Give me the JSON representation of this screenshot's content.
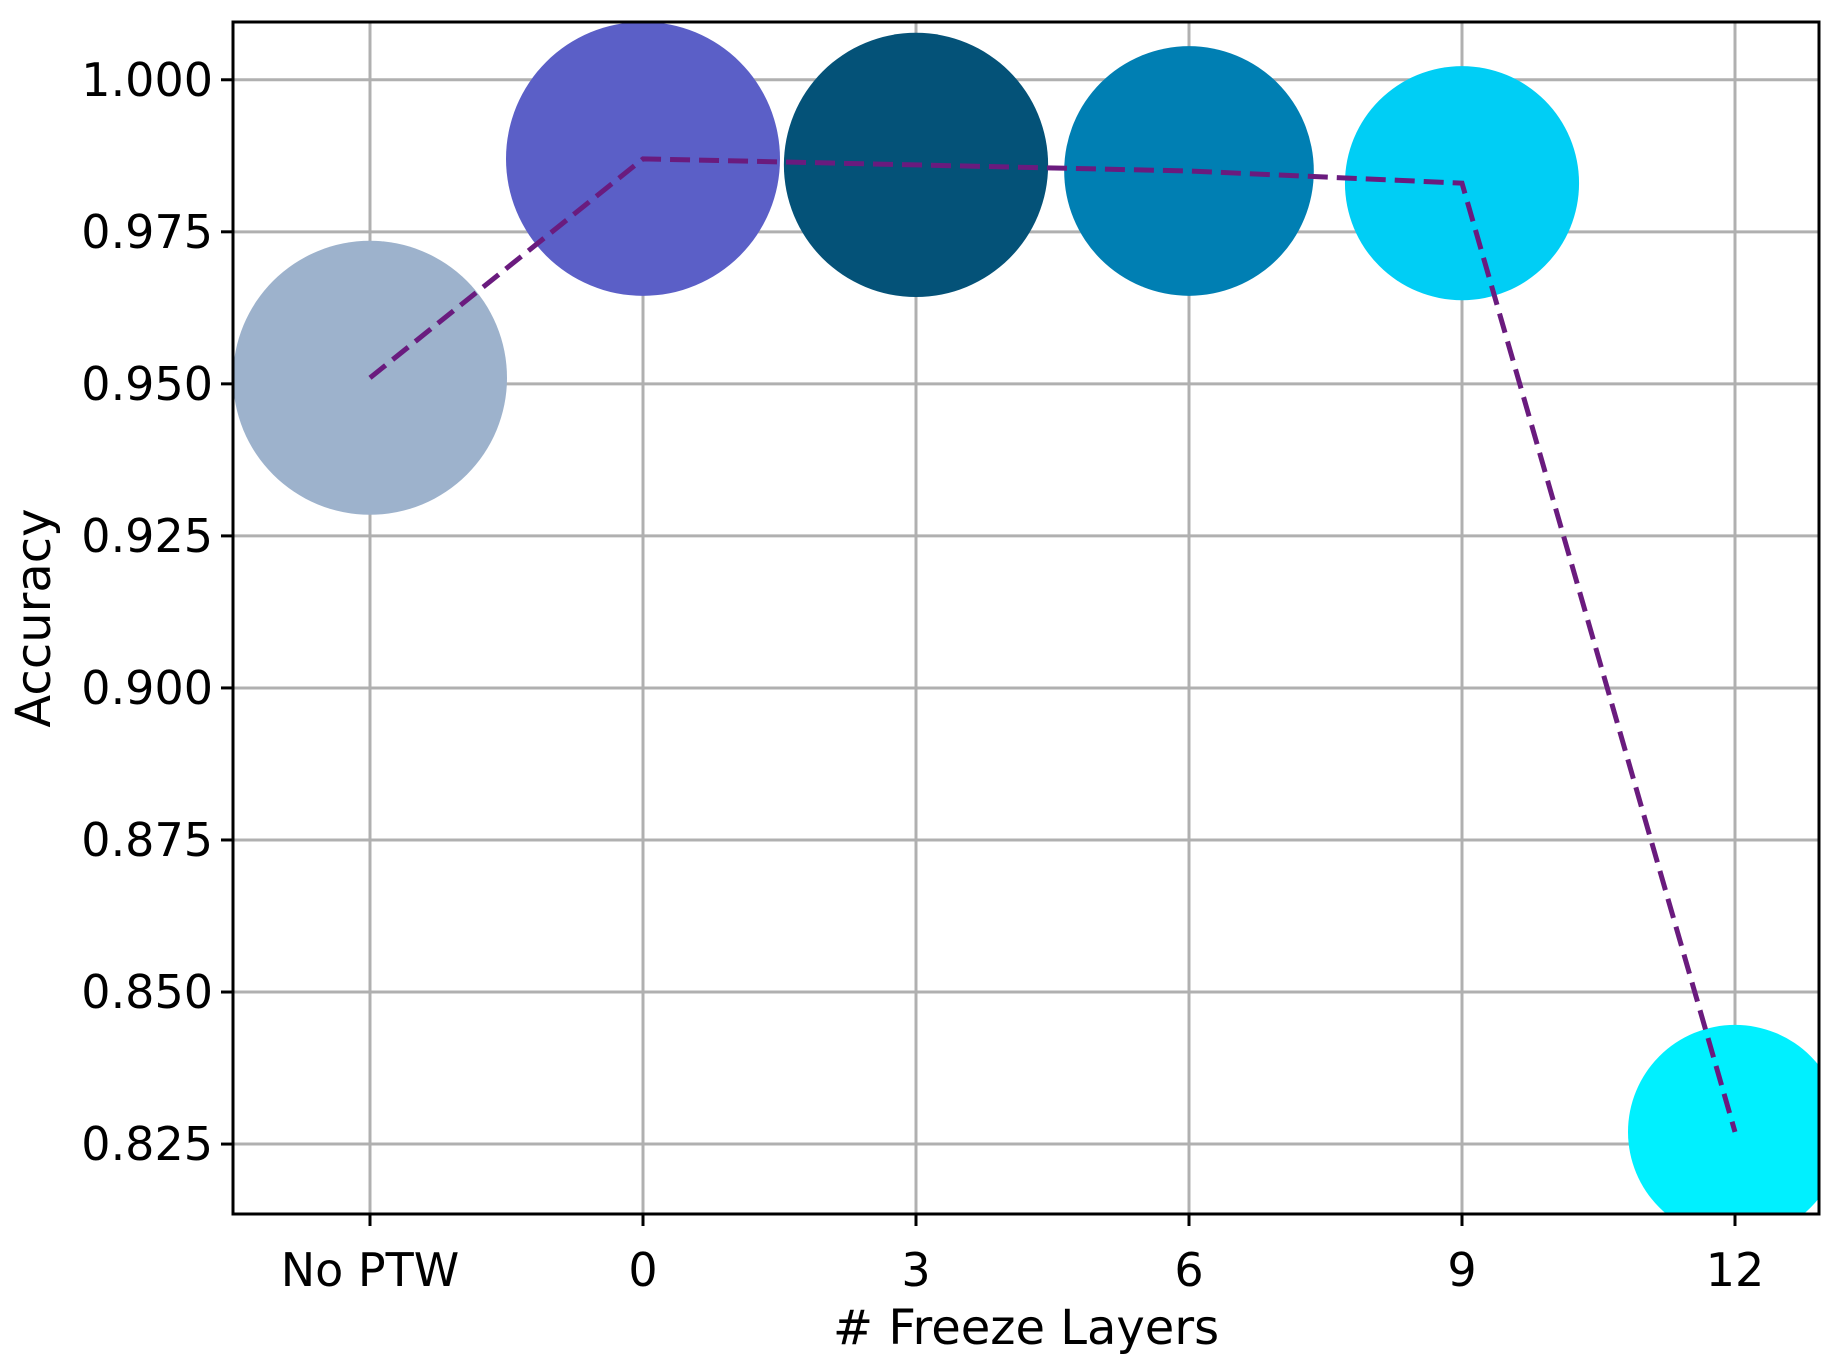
{
  "chart_data": {
    "type": "scatter",
    "xlabel": "# Freeze Layers",
    "ylabel": "Accuracy",
    "categories": [
      "No PTW",
      "0",
      "3",
      "6",
      "9",
      "12"
    ],
    "values": [
      0.951,
      0.987,
      0.986,
      0.985,
      0.983,
      0.827
    ],
    "bubble_sizes": [
      1.0,
      1.0,
      0.93,
      0.83,
      0.73,
      0.61
    ],
    "colors": [
      "#9db2cc",
      "#5b5fc7",
      "#045278",
      "#007fb3",
      "#00cef5",
      "#00f0ff"
    ],
    "line_color": "#6a1b7e",
    "line_style": "dashed",
    "ylim": [
      0.8135,
      1.0095
    ],
    "yticks": [
      0.825,
      0.85,
      0.875,
      0.9,
      0.925,
      0.95,
      0.975,
      1.0
    ],
    "ytick_labels": [
      "0.825",
      "0.850",
      "0.875",
      "0.900",
      "0.925",
      "0.950",
      "0.975",
      "1.000"
    ],
    "grid": true
  }
}
